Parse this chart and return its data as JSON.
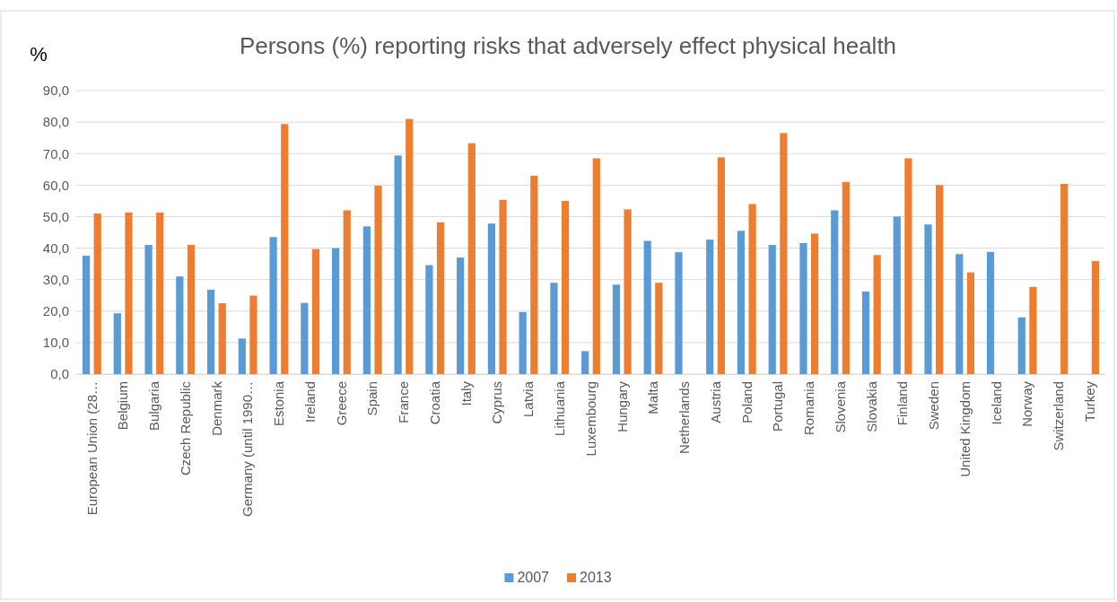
{
  "chart_data": {
    "type": "bar",
    "title": "Persons (%) reporting risks that adversely effect physical health",
    "ylabel": "%",
    "categories": [
      "European Union (28…",
      "Belgium",
      "Bulgaria",
      "Czech Republic",
      "Denmark",
      "Germany (until 1990…",
      "Estonia",
      "Ireland",
      "Greece",
      "Spain",
      "France",
      "Croatia",
      "Italy",
      "Cyprus",
      "Latvia",
      "Lithuania",
      "Luxembourg",
      "Hungary",
      "Malta",
      "Netherlands",
      "Austria",
      "Poland",
      "Portugal",
      "Romania",
      "Slovenia",
      "Slovakia",
      "Finland",
      "Sweden",
      "United Kingdom",
      "Iceland",
      "Norway",
      "Switzerland",
      "Turkey"
    ],
    "series": [
      {
        "name": "2007",
        "color": "#5b9bd5",
        "values": [
          37.6,
          19.3,
          41,
          31,
          26.8,
          11.3,
          43.5,
          22.6,
          40,
          46.9,
          69.4,
          34.6,
          37,
          47.8,
          19.7,
          29,
          7.3,
          28.4,
          42.3,
          38.7,
          42.7,
          45.5,
          41,
          41.6,
          52,
          26.2,
          50,
          47.5,
          38.1,
          38.8,
          18,
          null,
          null
        ]
      },
      {
        "name": "2013",
        "color": "#ed7d31",
        "values": [
          51,
          51.3,
          51.3,
          41,
          22.5,
          24.9,
          79.4,
          39.7,
          52,
          59.8,
          81,
          48.2,
          73.3,
          55.3,
          63,
          55,
          68.5,
          52.3,
          29,
          null,
          68.8,
          54,
          76.5,
          44.6,
          61,
          37.8,
          68.5,
          60,
          32.3,
          null,
          27.7,
          60.4,
          35.9
        ]
      }
    ],
    "ylim": [
      0,
      90
    ],
    "yticks": [
      {
        "value": 0,
        "label": "0,0"
      },
      {
        "value": 10,
        "label": "10,0"
      },
      {
        "value": 20,
        "label": "20,0"
      },
      {
        "value": 30,
        "label": "30,0"
      },
      {
        "value": 40,
        "label": "40,0"
      },
      {
        "value": 50,
        "label": "50,0"
      },
      {
        "value": 60,
        "label": "60,0"
      },
      {
        "value": 70,
        "label": "70,0"
      },
      {
        "value": 80,
        "label": "80,0"
      },
      {
        "value": 90,
        "label": "90,0"
      }
    ],
    "grid": "y",
    "legend": "bottom"
  }
}
